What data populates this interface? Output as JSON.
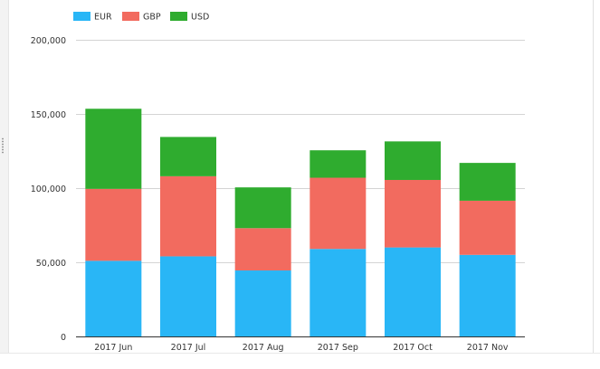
{
  "chart_data": {
    "type": "bar",
    "stacked": true,
    "categories": [
      "2017 Jun",
      "2017 Jul",
      "2017 Aug",
      "2017 Sep",
      "2017 Oct",
      "2017 Nov"
    ],
    "series": [
      {
        "name": "EUR",
        "color": "#29b6f6",
        "values": [
          51000,
          54000,
          44500,
          59000,
          60000,
          55000
        ]
      },
      {
        "name": "GBP",
        "color": "#f26b5f",
        "values": [
          48500,
          54000,
          28500,
          48000,
          45500,
          36500
        ]
      },
      {
        "name": "USD",
        "color": "#2fac2f",
        "values": [
          54000,
          26500,
          27500,
          18500,
          26000,
          25500
        ]
      }
    ],
    "ylim": [
      0,
      200000
    ],
    "yticks": [
      0,
      50000,
      100000,
      150000,
      200000
    ],
    "ytick_labels": [
      "0",
      "50,000",
      "100,000",
      "150,000",
      "200,000"
    ],
    "grid": true,
    "legend_position": "top-left"
  }
}
